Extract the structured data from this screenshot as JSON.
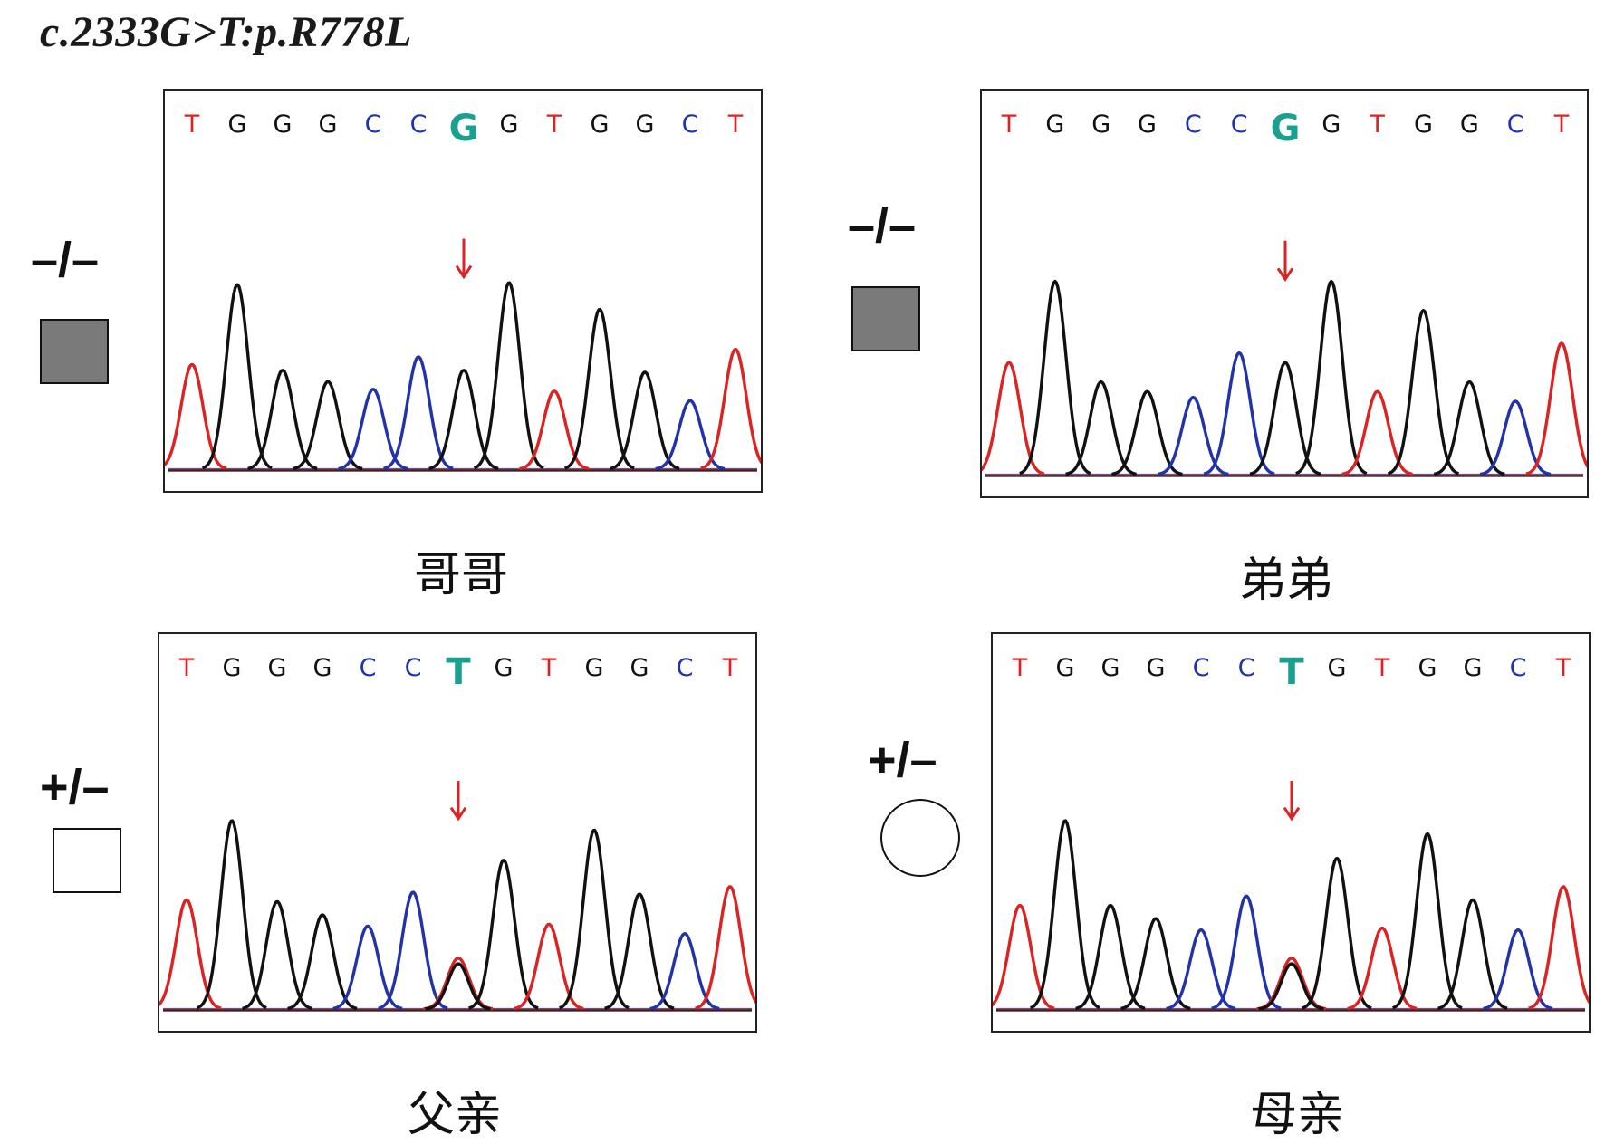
{
  "title": "c.2333G>T:p.R778L",
  "colors": {
    "A": "#2a8a2a",
    "C": "#2233aa",
    "G": "#111111",
    "T": "#dd2222",
    "highlight": "#1aa08f",
    "arrow": "#dd2222"
  },
  "panels": [
    {
      "id": "brother-older",
      "caption": "哥哥",
      "genotype": "–/–",
      "symbol": "square-filled",
      "bases": [
        "T",
        "G",
        "G",
        "G",
        "C",
        "C",
        "G",
        "G",
        "T",
        "G",
        "G",
        "C",
        "T"
      ],
      "highlight_index": 6,
      "peak_heights": [
        0.55,
        0.97,
        0.52,
        0.46,
        0.42,
        0.59,
        0.52,
        0.98,
        0.41,
        0.84,
        0.51,
        0.36,
        0.63
      ],
      "secondary_peak": null
    },
    {
      "id": "brother-younger",
      "caption": "弟弟",
      "genotype": "–/–",
      "symbol": "square-filled",
      "bases": [
        "T",
        "G",
        "G",
        "G",
        "C",
        "C",
        "G",
        "G",
        "T",
        "G",
        "G",
        "C",
        "T"
      ],
      "highlight_index": 6,
      "peak_heights": [
        0.58,
        1.0,
        0.48,
        0.43,
        0.4,
        0.63,
        0.58,
        1.0,
        0.43,
        0.85,
        0.48,
        0.38,
        0.68
      ],
      "secondary_peak": null
    },
    {
      "id": "father",
      "caption": "父亲",
      "genotype": "+/–",
      "symbol": "square-open",
      "bases": [
        "T",
        "G",
        "G",
        "G",
        "C",
        "C",
        "T",
        "G",
        "T",
        "G",
        "G",
        "C",
        "T"
      ],
      "highlight_index": 6,
      "peak_heights": [
        0.58,
        1.0,
        0.57,
        0.5,
        0.44,
        0.62,
        0.27,
        0.79,
        0.45,
        0.95,
        0.61,
        0.4,
        0.65
      ],
      "secondary_peak": {
        "index": 6,
        "base": "G",
        "height": 0.24
      }
    },
    {
      "id": "mother",
      "caption": "母亲",
      "genotype": "+/–",
      "symbol": "circle-open",
      "bases": [
        "T",
        "G",
        "G",
        "G",
        "C",
        "C",
        "T",
        "G",
        "T",
        "G",
        "G",
        "C",
        "T"
      ],
      "highlight_index": 6,
      "peak_heights": [
        0.55,
        1.0,
        0.55,
        0.48,
        0.42,
        0.6,
        0.27,
        0.8,
        0.43,
        0.93,
        0.58,
        0.42,
        0.65
      ],
      "secondary_peak": {
        "index": 6,
        "base": "G",
        "height": 0.24
      }
    }
  ]
}
